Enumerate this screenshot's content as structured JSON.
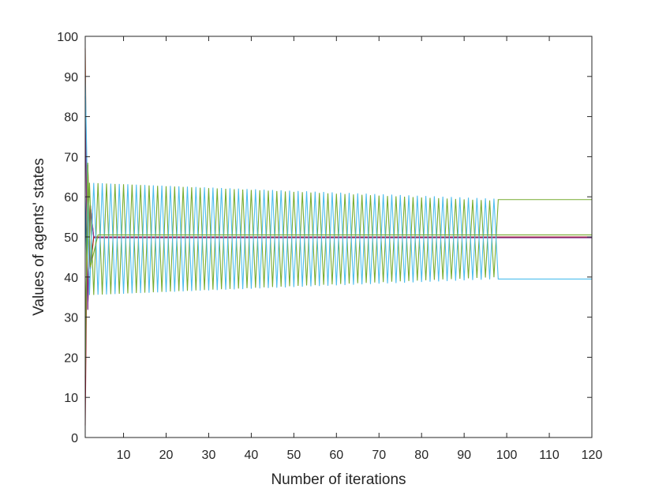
{
  "chart_data": {
    "type": "line",
    "title": "",
    "xlabel": "Number of iterations",
    "ylabel": "Values of agents' states",
    "xlim": [
      1,
      120
    ],
    "ylim": [
      0,
      100
    ],
    "xticks": [
      10,
      20,
      30,
      40,
      50,
      60,
      70,
      80,
      90,
      100,
      110,
      120
    ],
    "yticks": [
      0,
      10,
      20,
      30,
      40,
      50,
      60,
      70,
      80,
      90,
      100
    ],
    "grid": false,
    "legend": "none",
    "description_of_dynamics": {
      "steady_value_center": 50,
      "oscillation_until_iteration": 98,
      "final_values": {
        "upper": 59.3,
        "middle_high": 50.5,
        "middle": 50.0,
        "lower": 39.5
      }
    },
    "series": [
      {
        "color": "#0072BD",
        "initial": 60,
        "converge_iteration": 3,
        "final": 50.0
      },
      {
        "color": "#D95319",
        "initial": 97,
        "converge_iteration": 3,
        "final": 50.0
      },
      {
        "color": "#EDB120",
        "initial": 10,
        "converge_iteration": 3,
        "final": 50.0
      },
      {
        "color": "#7E2F8E",
        "initial": 85,
        "converge_iteration": 3,
        "final": 49.8
      },
      {
        "color": "#A2142F",
        "initial": 3,
        "converge_iteration": 3,
        "final": 50.0
      },
      {
        "color": "#77AC30",
        "initial": 30,
        "oscillating": true,
        "amp_start": 14,
        "amp_end": 9.5,
        "end_iteration": 98,
        "final": 59.3
      },
      {
        "color": "#4DBEEE",
        "initial": 90,
        "oscillating": true,
        "amp_start": 14,
        "amp_end": 10,
        "end_iteration": 98,
        "final": 39.5,
        "phase_shift": true
      },
      {
        "color": "#77AC30",
        "initial": 15,
        "converge_iteration": 4,
        "final": 50.5
      }
    ]
  }
}
